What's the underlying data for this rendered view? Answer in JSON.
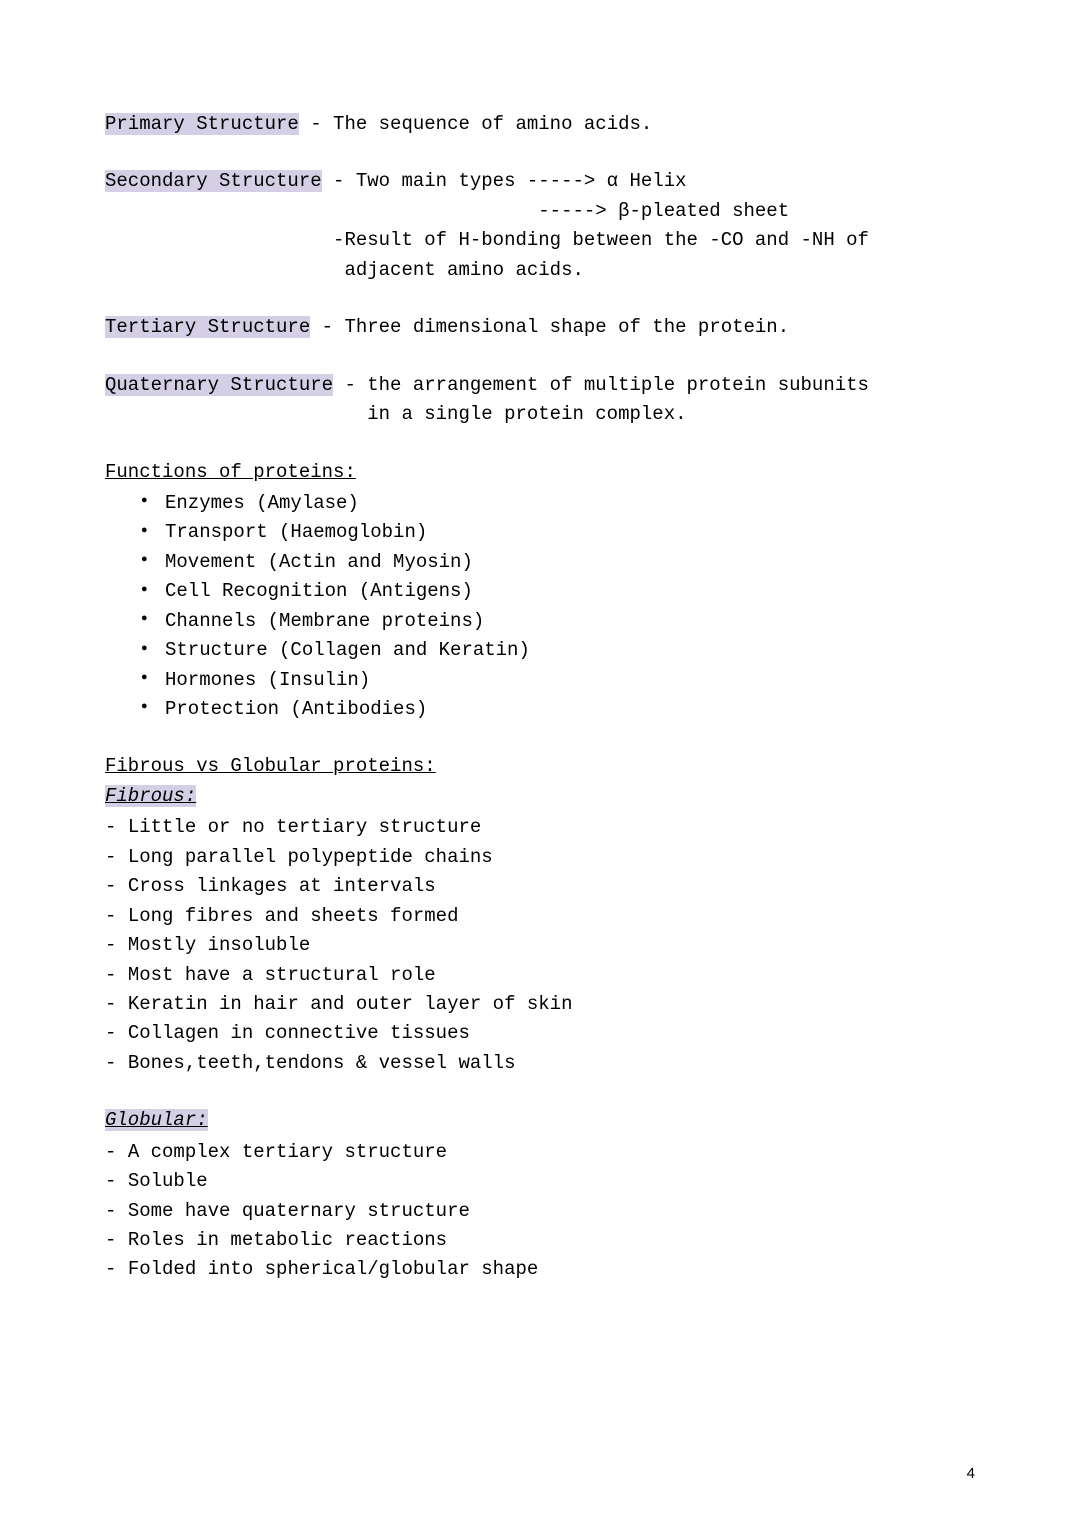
{
  "highlight_color": "#d4cfe5",
  "text_color": "#000000",
  "background_color": "#ffffff",
  "font_family": "Courier New",
  "font_size_pt": 14,
  "page_number": "4",
  "structures": {
    "primary": {
      "label": "Primary Structure",
      "desc": " - The sequence of amino acids."
    },
    "secondary": {
      "label": "Secondary Structure",
      "line1": " - Two main types -----> α Helix",
      "line2": "                                      -----> β-pleated sheet",
      "line3": "                    -Result of H-bonding between the -CO and -NH of",
      "line4": "                     adjacent amino acids."
    },
    "tertiary": {
      "label": "Tertiary Structure",
      "desc": " - Three dimensional shape of the protein."
    },
    "quaternary": {
      "label": "Quaternary Structure",
      "line1": " - the arrangement of multiple protein subunits",
      "line2": "                       in a single protein complex."
    }
  },
  "functions": {
    "heading": "Functions of proteins:",
    "items": [
      "Enzymes (Amylase)",
      "Transport (Haemoglobin)",
      "Movement (Actin and Myosin)",
      "Cell Recognition (Antigens)",
      "Channels (Membrane proteins)",
      "Structure (Collagen and Keratin)",
      "Hormones (Insulin)",
      "Protection (Antibodies)"
    ]
  },
  "fibrous_vs_globular": {
    "heading": "Fibrous vs Globular proteins:",
    "fibrous": {
      "label": "Fibrous:",
      "items": [
        "Little or no tertiary structure",
        "Long parallel polypeptide chains",
        "Cross linkages at intervals",
        "Long fibres and sheets formed",
        "Mostly insoluble",
        "Most have a structural role",
        "Keratin in hair and outer layer of skin",
        "Collagen in connective tissues",
        "Bones,teeth,tendons & vessel walls"
      ]
    },
    "globular": {
      "label": "Globular:",
      "items": [
        "A complex tertiary structure",
        "Soluble",
        "Some have quaternary structure",
        "Roles in metabolic reactions",
        "Folded into spherical/globular shape"
      ]
    }
  }
}
